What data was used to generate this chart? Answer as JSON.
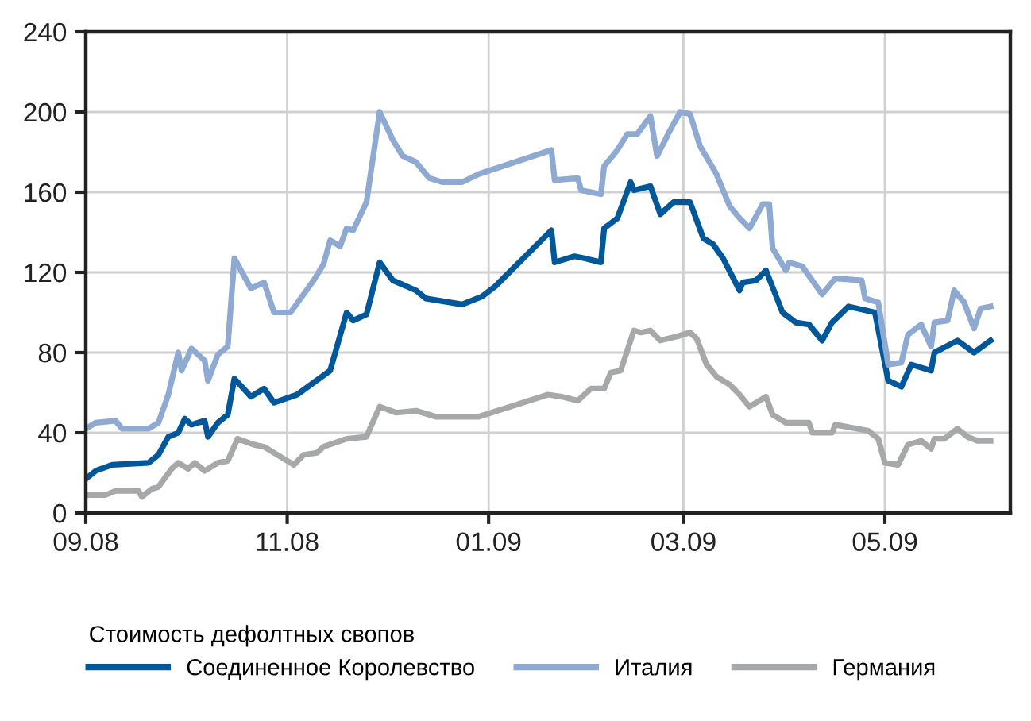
{
  "chart_data": {
    "type": "line",
    "legend_title": "Стоимость дефолтных свопов",
    "legend": "bottom",
    "grid": true,
    "marker": "none",
    "line_style": "solid",
    "xlim": [
      "2008-09-01",
      "2009-06-08"
    ],
    "xticks": [
      {
        "value": "2008-09-01",
        "label": "09.08"
      },
      {
        "value": "2008-11-01",
        "label": "11.08"
      },
      {
        "value": "2009-01-01",
        "label": "01.09"
      },
      {
        "value": "2009-03-01",
        "label": "03.09"
      },
      {
        "value": "2009-05-01",
        "label": "05.09"
      }
    ],
    "ylim": [
      0,
      240
    ],
    "yticks": [
      0,
      40,
      80,
      120,
      160,
      200,
      240
    ],
    "series": [
      {
        "name": "Соединенное Королевство",
        "color": "#00589a",
        "x": [
          "2008-09-01",
          "2008-09-04",
          "2008-09-09",
          "2008-09-20",
          "2008-09-23",
          "2008-09-26",
          "2008-09-29",
          "2008-10-01",
          "2008-10-03",
          "2008-10-07",
          "2008-10-08",
          "2008-10-11",
          "2008-10-14",
          "2008-10-16",
          "2008-10-21",
          "2008-10-25",
          "2008-10-28",
          "2008-11-04",
          "2008-11-14",
          "2008-11-19",
          "2008-11-21",
          "2008-11-25",
          "2008-11-29",
          "2008-12-03",
          "2008-12-10",
          "2008-12-13",
          "2008-12-24",
          "2008-12-30",
          "2009-01-03",
          "2009-01-20",
          "2009-01-21",
          "2009-01-27",
          "2009-01-30",
          "2009-02-04",
          "2009-02-05",
          "2009-02-09",
          "2009-02-13",
          "2009-02-14",
          "2009-02-19",
          "2009-02-22",
          "2009-02-26",
          "2009-03-03",
          "2009-03-07",
          "2009-03-10",
          "2009-03-13",
          "2009-03-18",
          "2009-03-19",
          "2009-03-23",
          "2009-03-26",
          "2009-03-31",
          "2009-04-04",
          "2009-04-08",
          "2009-04-12",
          "2009-04-15",
          "2009-04-20",
          "2009-04-28",
          "2009-05-02",
          "2009-05-06",
          "2009-05-09",
          "2009-05-15",
          "2009-05-16",
          "2009-05-23",
          "2009-05-28",
          "2009-06-02"
        ],
        "values": [
          17,
          21,
          24,
          25,
          29,
          38,
          40,
          47,
          44,
          46,
          38,
          45,
          49,
          67,
          58,
          62,
          55,
          59,
          71,
          100,
          96,
          99,
          125,
          116,
          111,
          107,
          104,
          108,
          113,
          141,
          125,
          128,
          127,
          125,
          142,
          147,
          165,
          161,
          163,
          149,
          155,
          155,
          137,
          134,
          127,
          111,
          115,
          116,
          121,
          100,
          95,
          94,
          86,
          95,
          103,
          100,
          66,
          63,
          74,
          71,
          80,
          86,
          80,
          86
        ]
      },
      {
        "name": "Италия",
        "color": "#8eaad2",
        "x": [
          "2008-09-01",
          "2008-09-04",
          "2008-09-10",
          "2008-09-12",
          "2008-09-20",
          "2008-09-23",
          "2008-09-26",
          "2008-09-29",
          "2008-09-30",
          "2008-10-03",
          "2008-10-07",
          "2008-10-08",
          "2008-10-11",
          "2008-10-14",
          "2008-10-16",
          "2008-10-21",
          "2008-10-25",
          "2008-10-28",
          "2008-11-02",
          "2008-11-09",
          "2008-11-12",
          "2008-11-14",
          "2008-11-17",
          "2008-11-19",
          "2008-11-21",
          "2008-11-25",
          "2008-11-29",
          "2008-12-03",
          "2008-12-06",
          "2008-12-10",
          "2008-12-14",
          "2008-12-18",
          "2008-12-24",
          "2008-12-29",
          "2009-01-20",
          "2009-01-21",
          "2009-01-28",
          "2009-01-29",
          "2009-02-04",
          "2009-02-05",
          "2009-02-09",
          "2009-02-12",
          "2009-02-15",
          "2009-02-19",
          "2009-02-21",
          "2009-02-25",
          "2009-02-28",
          "2009-03-03",
          "2009-03-06",
          "2009-03-11",
          "2009-03-15",
          "2009-03-18",
          "2009-03-21",
          "2009-03-25",
          "2009-03-27",
          "2009-03-28",
          "2009-04-01",
          "2009-04-02",
          "2009-04-06",
          "2009-04-12",
          "2009-04-16",
          "2009-04-24",
          "2009-04-25",
          "2009-04-29",
          "2009-05-02",
          "2009-05-06",
          "2009-05-08",
          "2009-05-12",
          "2009-05-15",
          "2009-05-16",
          "2009-05-20",
          "2009-05-22",
          "2009-05-25",
          "2009-05-28",
          "2009-05-30",
          "2009-06-02"
        ],
        "values": [
          42,
          45,
          46,
          42,
          42,
          45,
          59,
          80,
          71,
          82,
          76,
          66,
          79,
          83,
          127,
          112,
          115,
          100,
          100,
          116,
          124,
          136,
          133,
          142,
          141,
          155,
          200,
          186,
          178,
          175,
          167,
          165,
          165,
          169,
          181,
          166,
          167,
          161,
          159,
          173,
          181,
          189,
          189,
          198,
          178,
          191,
          200,
          199,
          183,
          169,
          153,
          147,
          142,
          154,
          154,
          132,
          121,
          125,
          123,
          109,
          117,
          116,
          107,
          105,
          74,
          75,
          89,
          94,
          83,
          95,
          96,
          111,
          105,
          92,
          102,
          103
        ]
      },
      {
        "name": "Германия",
        "color": "#a7a8aa",
        "x": [
          "2008-09-01",
          "2008-09-07",
          "2008-09-10",
          "2008-09-17",
          "2008-09-18",
          "2008-09-21",
          "2008-09-23",
          "2008-09-27",
          "2008-09-29",
          "2008-10-02",
          "2008-10-04",
          "2008-10-07",
          "2008-10-11",
          "2008-10-14",
          "2008-10-17",
          "2008-10-22",
          "2008-10-25",
          "2008-10-28",
          "2008-11-03",
          "2008-11-06",
          "2008-11-10",
          "2008-11-12",
          "2008-11-19",
          "2008-11-25",
          "2008-11-29",
          "2008-12-04",
          "2008-12-10",
          "2008-12-16",
          "2008-12-29",
          "2009-01-19",
          "2009-01-23",
          "2009-01-28",
          "2009-02-01",
          "2009-02-05",
          "2009-02-07",
          "2009-02-10",
          "2009-02-14",
          "2009-02-16",
          "2009-02-19",
          "2009-02-22",
          "2009-02-27",
          "2009-03-03",
          "2009-03-05",
          "2009-03-08",
          "2009-03-11",
          "2009-03-15",
          "2009-03-18",
          "2009-03-21",
          "2009-03-26",
          "2009-03-28",
          "2009-04-01",
          "2009-04-08",
          "2009-04-09",
          "2009-04-15",
          "2009-04-16",
          "2009-04-26",
          "2009-04-29",
          "2009-05-01",
          "2009-05-05",
          "2009-05-08",
          "2009-05-12",
          "2009-05-15",
          "2009-05-16",
          "2009-05-19",
          "2009-05-23",
          "2009-05-26",
          "2009-05-29",
          "2009-06-02"
        ],
        "values": [
          9,
          9,
          11,
          11,
          8,
          12,
          13,
          22,
          25,
          22,
          25,
          21,
          25,
          26,
          37,
          34,
          33,
          30,
          24,
          29,
          30,
          33,
          37,
          38,
          53,
          50,
          51,
          48,
          48,
          59,
          58,
          56,
          62,
          62,
          70,
          71,
          91,
          90,
          91,
          86,
          88,
          90,
          87,
          74,
          68,
          64,
          59,
          53,
          58,
          49,
          45,
          45,
          40,
          40,
          44,
          41,
          37,
          25,
          24,
          34,
          36,
          32,
          37,
          37,
          42,
          38,
          36,
          36
        ]
      }
    ]
  }
}
